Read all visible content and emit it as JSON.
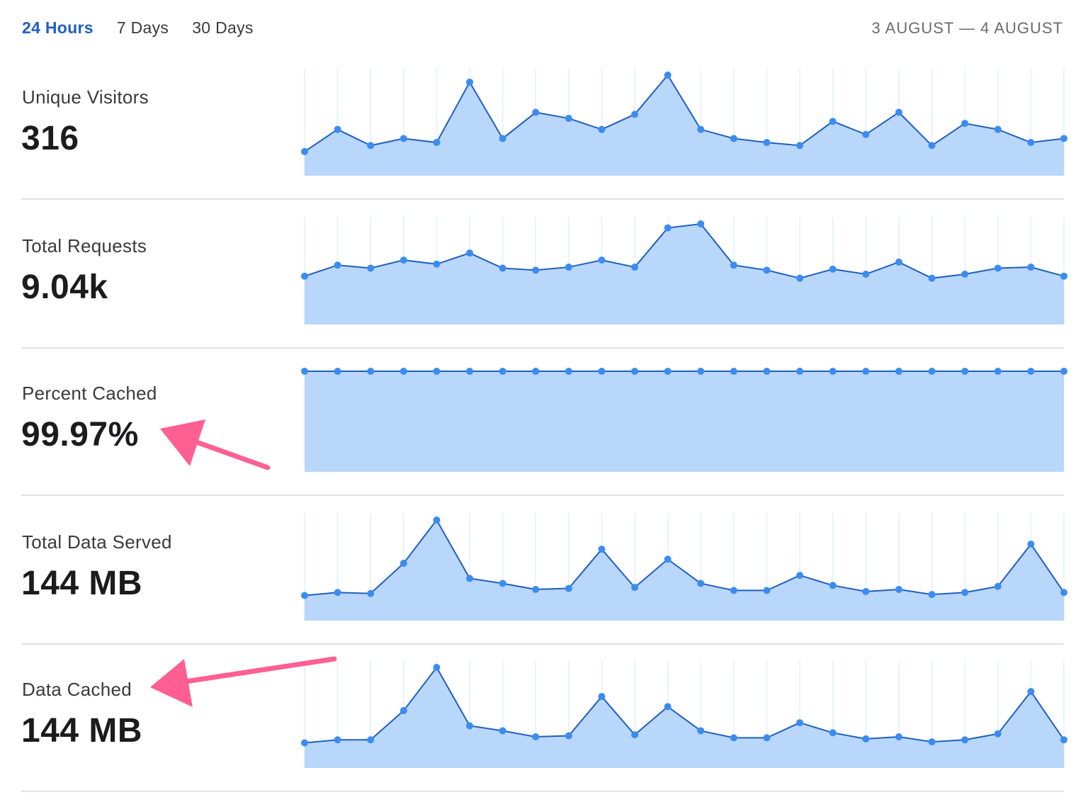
{
  "header": {
    "tabs": [
      {
        "label": "24 Hours",
        "active": true
      },
      {
        "label": "7 Days",
        "active": false
      },
      {
        "label": "30 Days",
        "active": false
      }
    ],
    "date_range": "3 AUGUST — 4 AUGUST"
  },
  "colors": {
    "accent": "#1f5fbf",
    "line": "#1f5fbf",
    "dot": "#3b8cf0",
    "fill": "#b9d6fb",
    "gridline": "#e3efff",
    "annotation_arrow": "#ff5f93"
  },
  "metrics": [
    {
      "label": "Unique Visitors",
      "value": "316"
    },
    {
      "label": "Total Requests",
      "value": "9.04k"
    },
    {
      "label": "Percent Cached",
      "value": "99.97%"
    },
    {
      "label": "Total Data Served",
      "value": "144 MB"
    },
    {
      "label": "Data Cached",
      "value": "144 MB"
    }
  ],
  "chart_data": [
    {
      "type": "area",
      "name": "Unique Visitors",
      "ylim": [
        0,
        100
      ],
      "grid": true,
      "values": [
        24,
        46,
        30,
        37,
        33,
        93,
        37,
        63,
        57,
        46,
        61,
        100,
        46,
        37,
        33,
        30,
        54,
        41,
        63,
        30,
        52,
        46,
        33,
        37
      ]
    },
    {
      "type": "area",
      "name": "Total Requests",
      "ylim": [
        0,
        100
      ],
      "grid": true,
      "values": [
        48,
        59,
        56,
        64,
        60,
        71,
        56,
        54,
        57,
        64,
        57,
        96,
        100,
        59,
        54,
        46,
        55,
        50,
        62,
        46,
        50,
        56,
        57,
        48
      ]
    },
    {
      "type": "area",
      "name": "Percent Cached",
      "ylim": [
        0,
        100
      ],
      "grid": false,
      "values": [
        99.97,
        99.97,
        99.97,
        99.97,
        99.97,
        99.97,
        99.97,
        99.97,
        99.97,
        99.97,
        99.97,
        99.97,
        99.97,
        99.97,
        99.97,
        99.97,
        99.97,
        99.97,
        99.97,
        99.97,
        99.97,
        99.97,
        99.97,
        99.97
      ]
    },
    {
      "type": "area",
      "name": "Total Data Served",
      "ylim": [
        0,
        100
      ],
      "grid": true,
      "values": [
        25,
        28,
        27,
        57,
        100,
        42,
        37,
        31,
        32,
        71,
        33,
        61,
        37,
        30,
        30,
        45,
        35,
        29,
        31,
        26,
        28,
        34,
        76,
        28
      ]
    },
    {
      "type": "area",
      "name": "Data Cached",
      "ylim": [
        0,
        100
      ],
      "grid": true,
      "values": [
        25,
        28,
        28,
        57,
        100,
        42,
        37,
        31,
        32,
        71,
        33,
        61,
        37,
        30,
        30,
        45,
        35,
        29,
        31,
        26,
        28,
        34,
        76,
        28
      ]
    }
  ]
}
